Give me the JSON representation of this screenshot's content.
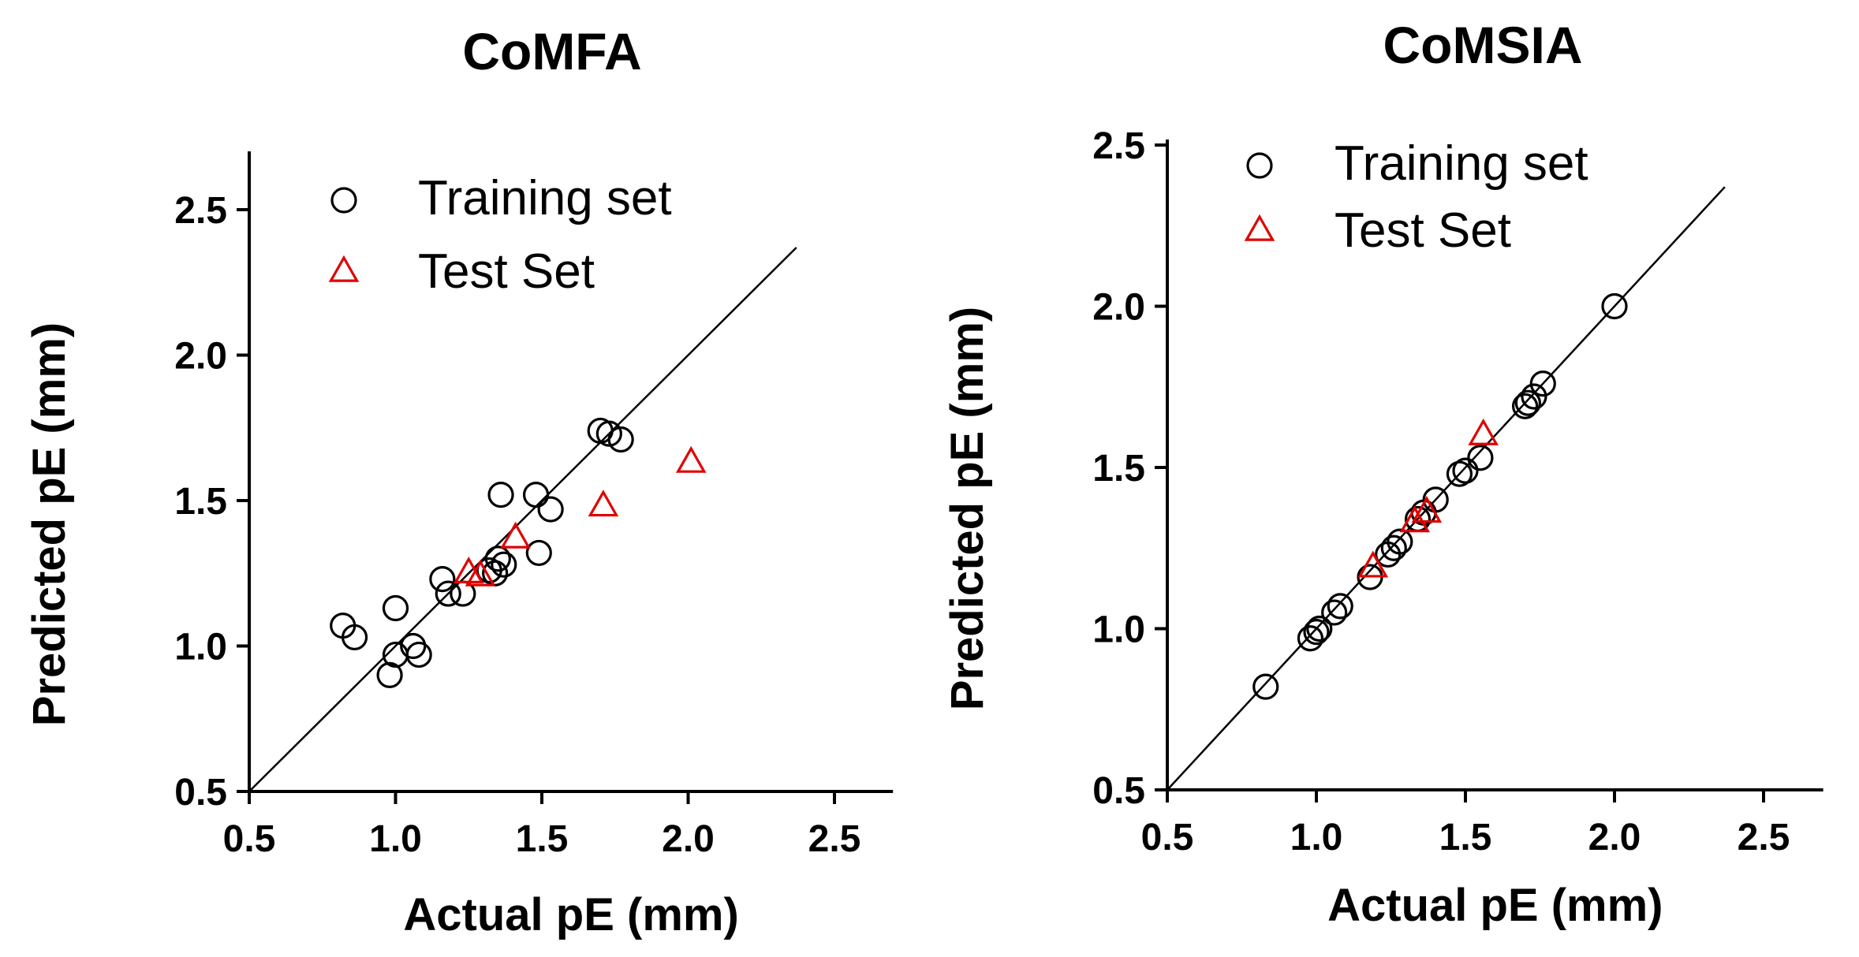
{
  "colors": {
    "training": "#000000",
    "test": "#e00000",
    "axis": "#000000"
  },
  "chart_data": [
    {
      "type": "scatter",
      "title": "CoMFA",
      "xlabel": "Actual pE (mm)",
      "ylabel": "Predicted pE (mm)",
      "xlim": [
        0.5,
        2.7
      ],
      "ylim": [
        0.5,
        2.7
      ],
      "xticks": [
        0.5,
        1.0,
        1.5,
        2.0,
        2.5
      ],
      "yticks": [
        0.5,
        1.0,
        1.5,
        2.0,
        2.5
      ],
      "xtick_labels": [
        "0.5",
        "1.0",
        "1.5",
        "2.0",
        "2.5"
      ],
      "ytick_labels": [
        "0.5",
        "1.0",
        "1.5",
        "2.0",
        "2.5"
      ],
      "identity_line": [
        [
          0.5,
          0.5
        ],
        [
          2.37,
          2.37
        ]
      ],
      "legend": {
        "position": "top-left",
        "training_label": "Training set",
        "test_label": "Test Set"
      },
      "series": [
        {
          "name": "Training set",
          "marker": "circle",
          "x": [
            0.82,
            0.86,
            0.98,
            1.0,
            1.0,
            1.06,
            1.08,
            1.16,
            1.18,
            1.23,
            1.32,
            1.34,
            1.35,
            1.36,
            1.37,
            1.48,
            1.49,
            1.53,
            1.7,
            1.73,
            1.77
          ],
          "y": [
            1.07,
            1.03,
            0.9,
            0.97,
            1.13,
            1.0,
            0.97,
            1.23,
            1.18,
            1.18,
            1.26,
            1.25,
            1.3,
            1.52,
            1.28,
            1.52,
            1.32,
            1.47,
            1.74,
            1.73,
            1.71
          ]
        },
        {
          "name": "Test Set",
          "marker": "triangle",
          "x": [
            1.25,
            1.29,
            1.41,
            1.71,
            2.01
          ],
          "y": [
            1.25,
            1.24,
            1.37,
            1.48,
            1.63
          ]
        }
      ]
    },
    {
      "type": "scatter",
      "title": "CoMSIA",
      "xlabel": "Actual pE (mm)",
      "ylabel": "Predicted pE (mm)",
      "xlim": [
        0.5,
        2.7
      ],
      "ylim": [
        0.5,
        2.5
      ],
      "xticks": [
        0.5,
        1.0,
        1.5,
        2.0,
        2.5
      ],
      "yticks": [
        0.5,
        1.0,
        1.5,
        2.0,
        2.5
      ],
      "xtick_labels": [
        "0.5",
        "1.0",
        "1.5",
        "2.0",
        "2.5"
      ],
      "ytick_labels": [
        "0.5",
        "1.0",
        "1.5",
        "2.0",
        "2.5"
      ],
      "identity_line": [
        [
          0.5,
          0.5
        ],
        [
          2.37,
          2.37
        ]
      ],
      "legend": {
        "position": "top-left",
        "training_label": "Training set",
        "test_label": "Test Set"
      },
      "series": [
        {
          "name": "Training set",
          "marker": "circle",
          "x": [
            0.83,
            0.98,
            1.0,
            1.01,
            1.06,
            1.08,
            1.18,
            1.24,
            1.26,
            1.28,
            1.34,
            1.36,
            1.4,
            1.48,
            1.5,
            1.55,
            1.7,
            1.71,
            1.73,
            1.76,
            2.0
          ],
          "y": [
            0.82,
            0.97,
            0.99,
            1.0,
            1.05,
            1.07,
            1.16,
            1.23,
            1.25,
            1.27,
            1.34,
            1.36,
            1.4,
            1.48,
            1.49,
            1.53,
            1.69,
            1.7,
            1.72,
            1.76,
            2.0
          ]
        },
        {
          "name": "Test Set",
          "marker": "triangle",
          "x": [
            1.19,
            1.33,
            1.37,
            1.56
          ],
          "y": [
            1.19,
            1.33,
            1.36,
            1.6
          ]
        }
      ]
    }
  ]
}
